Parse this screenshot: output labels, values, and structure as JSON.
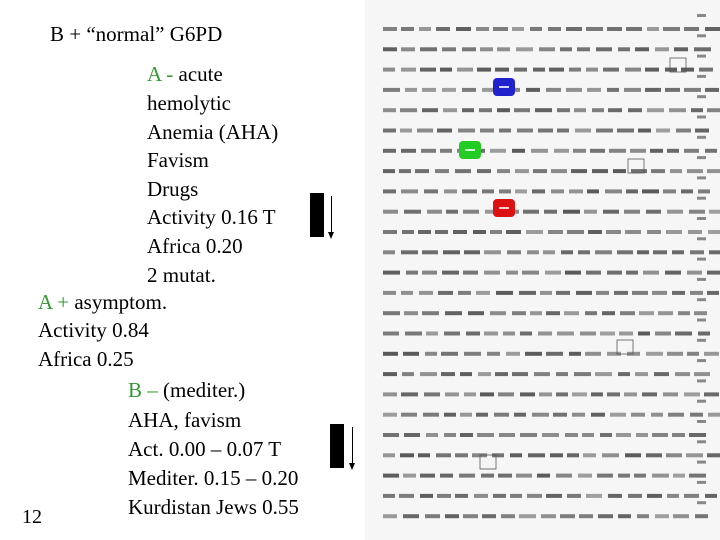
{
  "title": "B + “normal” G6PD",
  "variant_a_minus": {
    "label": "A -",
    "lines": [
      " acute",
      "hemolytic",
      "Anemia (AHA)",
      "Favism",
      "Drugs",
      "Activity 0.16   T",
      "Africa 0.20",
      "2 mutat."
    ]
  },
  "variant_a_plus": {
    "label": "A +",
    "lines": [
      " asymptom.",
      "Activity 0.84",
      "Africa 0.25"
    ]
  },
  "variant_b_minus": {
    "label": "B –",
    "lines": [
      " (mediter.)",
      "AHA, favism",
      "Act. 0.00 – 0.07   T",
      "Mediter. 0.15 – 0.20",
      "Kurdistan Jews 0.55"
    ]
  },
  "slide_number": "12",
  "markers": {
    "blue": "#2222cc",
    "green": "#22cc22",
    "red": "#dd1111"
  },
  "colors": {
    "variant_label": "#339933"
  }
}
